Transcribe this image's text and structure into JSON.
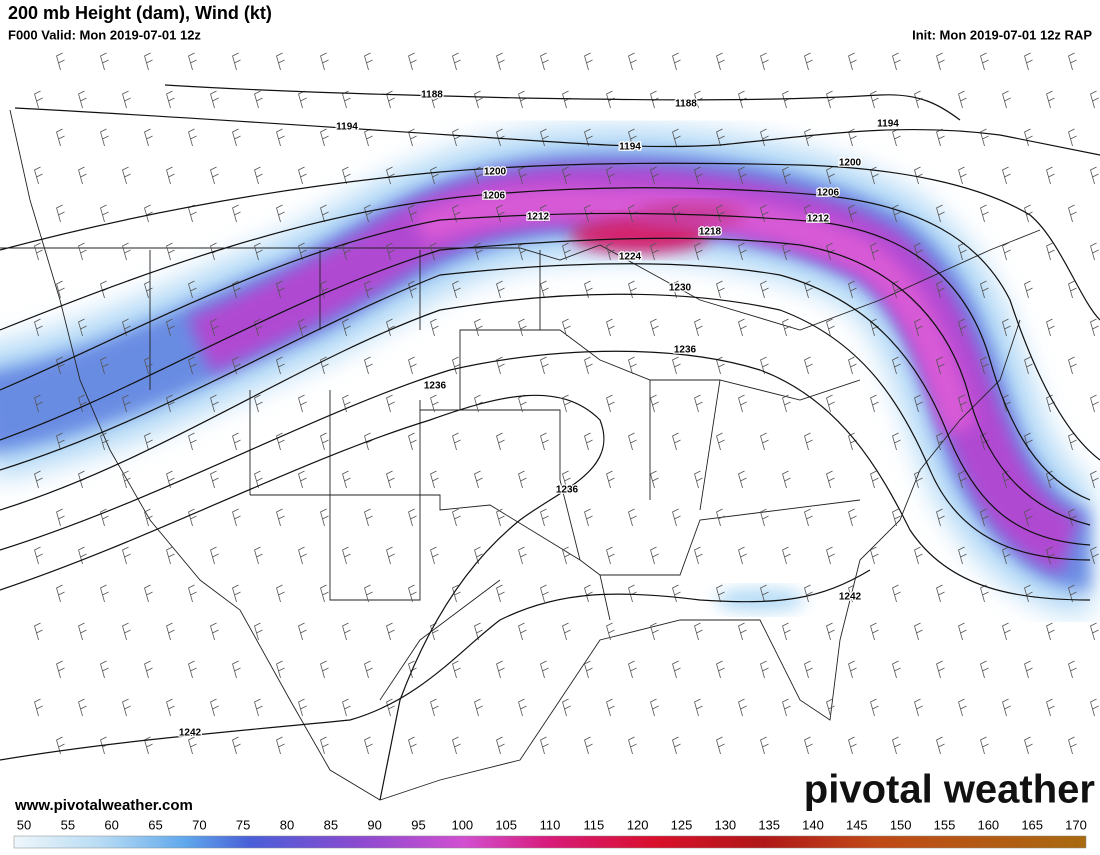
{
  "header": {
    "title": "200 mb Height (dam), Wind (kt)",
    "valid": "F000 Valid: Mon 2019-07-01 12z",
    "init": "Init: Mon 2019-07-01 12z RAP"
  },
  "contour_labels": [
    1188,
    1188,
    1194,
    1194,
    1194,
    1200,
    1200,
    1206,
    1206,
    1212,
    1212,
    1218,
    1224,
    1230,
    1236,
    1236,
    1236,
    1242,
    1242
  ],
  "colorbar": {
    "ticks": [
      50,
      55,
      60,
      65,
      70,
      75,
      80,
      85,
      90,
      95,
      100,
      105,
      110,
      115,
      120,
      125,
      130,
      135,
      140,
      145,
      150,
      155,
      160,
      165,
      170
    ]
  },
  "footer": {
    "website": "www.pivotalweather.com",
    "brand": "pivotal weather"
  }
}
